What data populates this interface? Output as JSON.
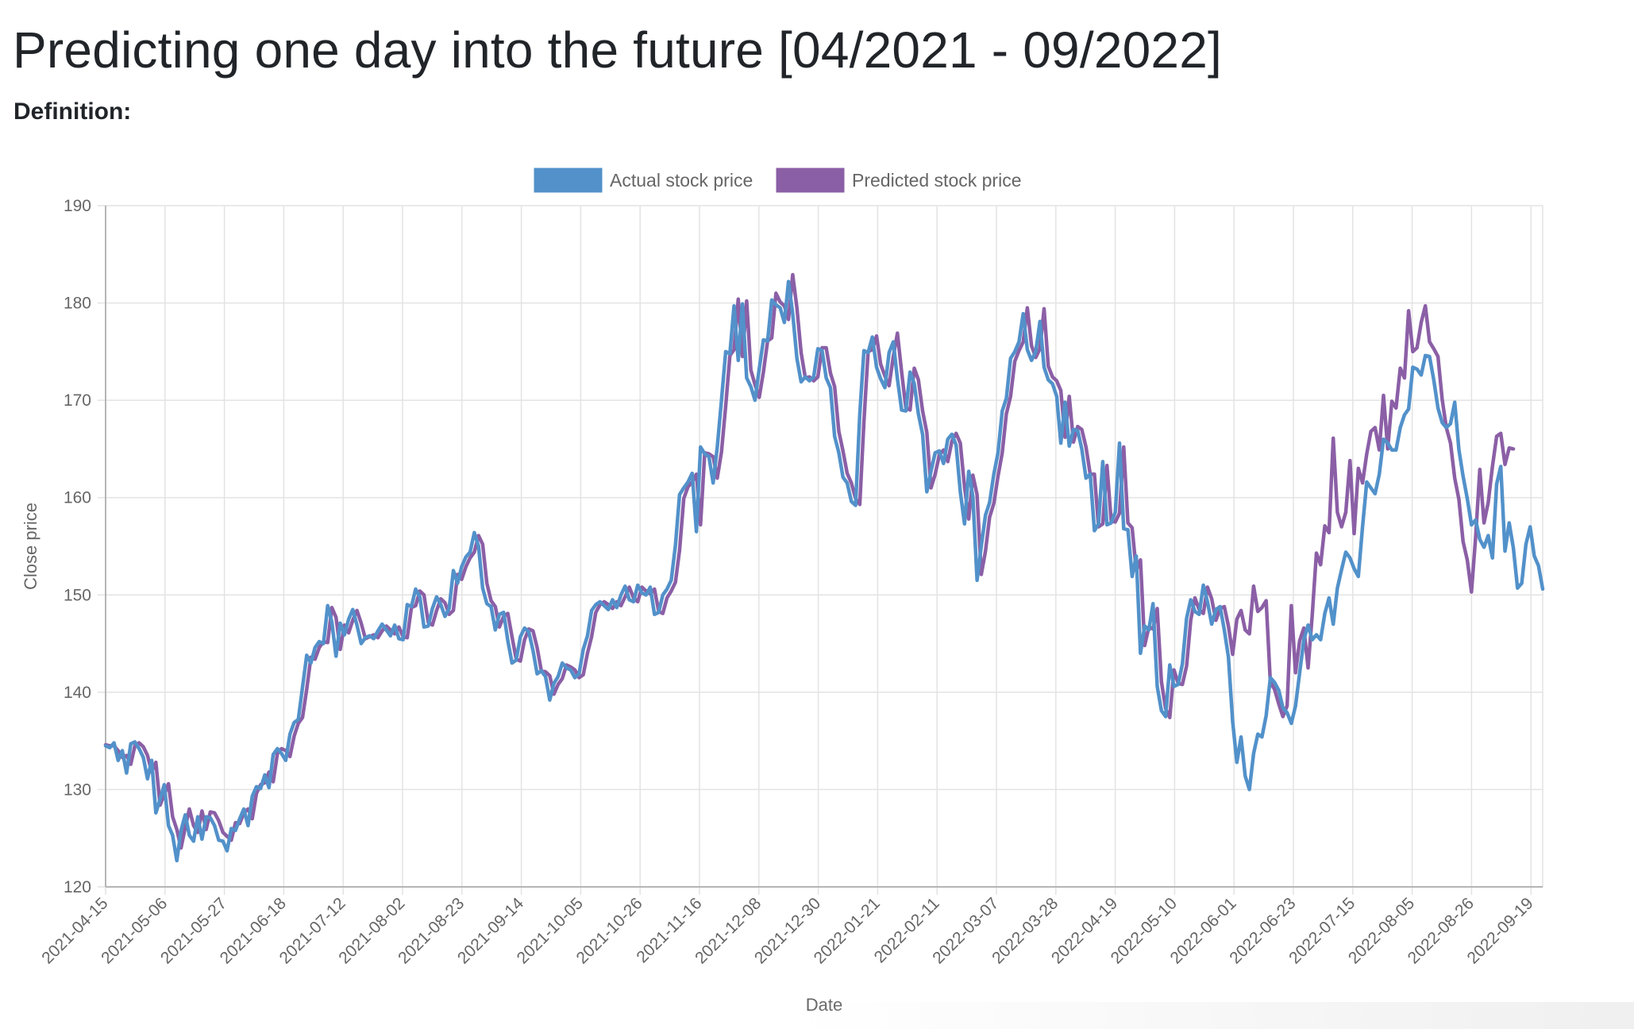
{
  "page": {
    "title": "Predicting one day into the future [04/2021 - 09/2022]",
    "definition_label": "Definition:"
  },
  "chart_data": {
    "type": "line",
    "xlabel": "Date",
    "ylabel": "Close price",
    "ylim": [
      120,
      190
    ],
    "y_ticks": [
      120,
      130,
      140,
      150,
      160,
      170,
      180,
      190
    ],
    "x_tick_labels": [
      "2021-04-15",
      "2021-05-06",
      "2021-05-27",
      "2021-06-18",
      "2021-07-12",
      "2021-08-02",
      "2021-08-23",
      "2021-09-14",
      "2021-10-05",
      "2021-10-26",
      "2021-11-16",
      "2021-12-08",
      "2021-12-30",
      "2022-01-21",
      "2022-02-11",
      "2022-03-07",
      "2022-03-28",
      "2022-04-19",
      "2022-05-10",
      "2022-06-01",
      "2022-06-23",
      "2022-07-15",
      "2022-08-05",
      "2022-08-26",
      "2022-09-19"
    ],
    "grid": true,
    "legend_position": "top",
    "series": [
      {
        "name": "Actual stock price",
        "color": "#5291ca",
        "values": [
          134.5,
          134.3,
          134.8,
          133.0,
          134.0,
          131.7,
          134.7,
          134.9,
          134.2,
          133.3,
          131.1,
          133.0,
          127.6,
          129.0,
          130.5,
          126.3,
          125.3,
          122.7,
          125.8,
          127.4,
          125.3,
          124.7,
          127.2,
          124.9,
          127.2,
          127.1,
          126.3,
          124.8,
          124.7,
          123.7,
          126.0,
          125.8,
          127.0,
          128.0,
          126.3,
          129.3,
          130.3,
          130.1,
          131.5,
          130.2,
          133.6,
          134.2,
          133.7,
          133.0,
          135.7,
          136.9,
          137.2,
          140.5,
          143.8,
          143.0,
          144.6,
          145.2,
          145.0,
          148.9,
          147.2,
          143.7,
          147.1,
          145.9,
          147.5,
          148.5,
          146.9,
          145.0,
          145.6,
          145.8,
          145.5,
          146.3,
          147.0,
          146.4,
          145.8,
          146.9,
          145.5,
          145.4,
          149.0,
          148.8,
          150.6,
          149.8,
          146.7,
          146.8,
          148.6,
          149.8,
          149.0,
          147.8,
          148.6,
          152.5,
          151.2,
          152.9,
          153.9,
          154.4,
          156.4,
          155.0,
          150.7,
          149.1,
          148.8,
          146.4,
          148.0,
          148.2,
          145.3,
          143.0,
          143.3,
          145.7,
          146.6,
          146.2,
          144.3,
          141.9,
          142.2,
          141.6,
          139.2,
          140.9,
          141.6,
          143.0,
          142.5,
          142.3,
          141.5,
          141.9,
          144.4,
          145.8,
          148.4,
          149.0,
          149.3,
          148.9,
          148.5,
          149.5,
          148.7,
          150.0,
          150.9,
          149.5,
          149.3,
          151.0,
          150.2,
          150.0,
          150.8,
          148.0,
          148.2,
          150.0,
          150.6,
          151.5,
          155.1,
          160.3,
          161.0,
          161.6,
          162.5,
          156.5,
          165.2,
          164.5,
          164.2,
          161.5,
          165.2,
          170.0,
          175.0,
          174.8,
          179.7,
          174.1,
          179.9,
          172.3,
          171.4,
          170.0,
          173.2,
          176.2,
          176.1,
          180.3,
          179.8,
          179.5,
          178.0,
          182.2,
          178.9,
          174.3,
          171.9,
          172.4,
          172.0,
          172.4,
          175.3,
          175.1,
          172.3,
          171.3,
          166.3,
          164.6,
          162.1,
          161.5,
          159.6,
          159.2,
          168.6,
          175.1,
          174.9,
          176.5,
          173.4,
          172.2,
          171.3,
          174.9,
          176.0,
          172.2,
          169.0,
          168.9,
          172.9,
          171.7,
          168.6,
          166.5,
          160.6,
          162.7,
          164.6,
          164.8,
          163.5,
          166.0,
          166.5,
          165.4,
          160.6,
          157.3,
          162.7,
          160.1,
          151.5,
          155.0,
          158.2,
          159.5,
          162.4,
          164.6,
          168.9,
          170.2,
          174.3,
          175.0,
          176.0,
          178.9,
          175.2,
          174.1,
          175.0,
          178.1,
          173.4,
          172.1,
          171.7,
          170.4,
          165.6,
          169.8,
          165.3,
          167.0,
          166.9,
          165.0,
          162.0,
          162.4,
          156.6,
          157.3,
          163.7,
          157.2,
          157.4,
          158.5,
          165.6,
          156.8,
          156.7,
          151.9,
          154.0,
          144.0,
          146.8,
          146.4,
          149.1,
          140.6,
          138.1,
          137.5,
          142.8,
          140.6,
          140.8,
          142.9,
          147.6,
          149.5,
          148.3,
          148.0,
          151.0,
          149.3,
          147.0,
          148.5,
          148.8,
          146.4,
          143.6,
          137.0,
          132.8,
          135.4,
          131.4,
          130.0,
          133.7,
          135.7,
          135.4,
          137.6,
          141.5,
          141.0,
          140.2,
          138.4,
          137.9,
          136.8,
          138.6,
          142.0,
          145.4,
          146.9,
          145.4,
          145.9,
          145.4,
          148.1,
          149.7,
          147.0,
          150.7,
          152.6,
          154.4,
          153.8,
          152.7,
          151.9,
          157.0,
          161.6,
          161.0,
          160.4,
          162.4,
          166.0,
          165.6,
          164.9,
          164.9,
          167.2,
          168.5,
          169.1,
          173.4,
          173.2,
          172.6,
          174.6,
          174.5,
          172.1,
          169.2,
          167.7,
          167.2,
          167.6,
          169.8,
          164.9,
          162.2,
          159.9,
          157.2,
          157.7,
          155.7,
          154.9,
          156.1,
          153.8,
          161.4,
          163.2,
          154.5,
          157.4,
          154.8,
          150.7,
          151.2,
          155.2,
          157.0,
          154.0,
          153.0,
          150.6
        ]
      },
      {
        "name": "Predicted stock price",
        "color": "#8b5fa6",
        "values": [
          134.6,
          134.5,
          134.5,
          134.0,
          133.3,
          133.5,
          132.6,
          134.5,
          134.8,
          134.4,
          133.5,
          131.8,
          132.8,
          128.4,
          129.5,
          130.6,
          127.2,
          125.9,
          124.0,
          126.1,
          128.0,
          126.3,
          125.6,
          127.8,
          125.9,
          127.7,
          127.6,
          126.8,
          125.6,
          125.2,
          124.8,
          126.6,
          126.5,
          127.6,
          128.0,
          127.0,
          129.6,
          130.5,
          130.7,
          131.8,
          130.8,
          133.7,
          134.2,
          134.0,
          133.4,
          135.5,
          136.8,
          137.4,
          140.3,
          143.6,
          143.4,
          144.6,
          145.2,
          145.1,
          148.7,
          147.7,
          144.4,
          146.9,
          146.1,
          147.4,
          148.4,
          147.1,
          145.5,
          145.7,
          145.9,
          145.6,
          146.3,
          146.8,
          146.4,
          146.0,
          146.7,
          145.7,
          145.6,
          148.7,
          148.9,
          150.4,
          150.0,
          147.2,
          146.9,
          148.4,
          149.6,
          149.2,
          148.0,
          148.4,
          152.1,
          151.6,
          152.9,
          153.8,
          154.4,
          156.1,
          155.2,
          151.2,
          149.4,
          148.8,
          146.7,
          147.8,
          148.1,
          145.7,
          143.4,
          143.2,
          145.4,
          146.5,
          146.3,
          144.6,
          142.2,
          142.1,
          141.7,
          139.8,
          140.8,
          141.4,
          142.8,
          142.6,
          142.3,
          141.5,
          141.8,
          144.0,
          145.7,
          148.2,
          149.0,
          149.3,
          149.0,
          148.6,
          149.3,
          148.9,
          149.8,
          150.8,
          149.7,
          149.3,
          150.8,
          150.4,
          150.1,
          150.6,
          148.3,
          148.1,
          149.7,
          150.4,
          151.3,
          154.6,
          159.9,
          161.1,
          161.6,
          162.4,
          157.2,
          164.6,
          164.5,
          164.2,
          162.0,
          164.7,
          169.4,
          174.6,
          175.2,
          180.4,
          174.5,
          180.2,
          173.1,
          171.6,
          170.3,
          172.9,
          176.1,
          176.4,
          181.0,
          180.1,
          179.7,
          178.3,
          182.9,
          179.5,
          174.9,
          172.3,
          172.4,
          172.0,
          172.4,
          175.4,
          175.4,
          172.8,
          171.4,
          166.8,
          164.8,
          162.5,
          161.5,
          159.9,
          159.3,
          167.8,
          175.0,
          175.2,
          176.6,
          173.7,
          172.5,
          171.5,
          174.5,
          176.9,
          172.9,
          169.2,
          169.0,
          173.3,
          172.1,
          168.9,
          166.7,
          161.0,
          162.4,
          164.4,
          164.9,
          163.7,
          165.8,
          166.6,
          165.6,
          161.1,
          157.8,
          162.3,
          160.3,
          152.1,
          154.5,
          158.0,
          159.4,
          162.2,
          164.6,
          168.6,
          170.4,
          174.0,
          175.1,
          176.0,
          179.5,
          175.6,
          174.4,
          175.3,
          179.4,
          173.5,
          172.4,
          172.0,
          171.0,
          166.2,
          170.4,
          165.7,
          167.3,
          167.0,
          165.2,
          162.4,
          162.4,
          157.0,
          157.3,
          163.3,
          157.6,
          157.5,
          158.4,
          165.2,
          157.4,
          156.9,
          152.5,
          153.6,
          144.8,
          146.7,
          146.5,
          148.6,
          141.1,
          138.3,
          137.4,
          142.3,
          140.9,
          140.8,
          142.7,
          147.4,
          149.7,
          148.5,
          148.1,
          150.8,
          149.6,
          147.4,
          148.6,
          148.8,
          146.8,
          143.9,
          147.5,
          148.4,
          146.4,
          146.0,
          150.9,
          148.3,
          148.7,
          149.4,
          141.0,
          140.3,
          138.8,
          137.5,
          138.6,
          148.9,
          142.0,
          145.3,
          146.6,
          142.5,
          148.0,
          154.3,
          153.1,
          157.1,
          156.4,
          166.1,
          158.5,
          157.0,
          158.5,
          163.8,
          156.3,
          163.0,
          161.5,
          164.5,
          166.8,
          167.2,
          164.9,
          170.5,
          165.0,
          169.9,
          169.2,
          173.3,
          172.3,
          179.2,
          175.0,
          175.4,
          178.0,
          179.7,
          176.0,
          175.3,
          174.5,
          170.1,
          167.2,
          165.6,
          162.0,
          159.8,
          155.5,
          153.6,
          150.3,
          156.0,
          162.9,
          157.4,
          159.5,
          163.2,
          166.3,
          166.6,
          163.4,
          165.1,
          165.0
        ]
      }
    ]
  }
}
